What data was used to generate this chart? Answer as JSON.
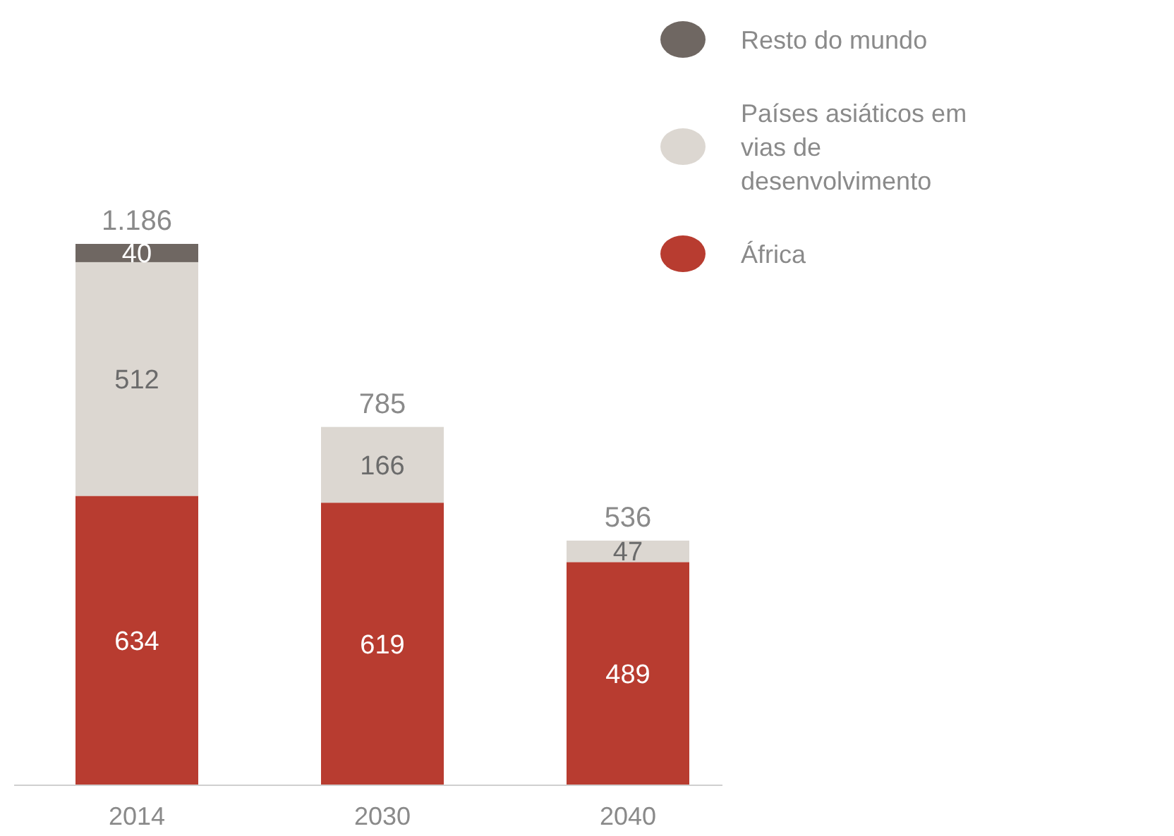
{
  "chart_data": {
    "type": "bar",
    "stacked": true,
    "categories": [
      "2014",
      "2030",
      "2040"
    ],
    "series": [
      {
        "name": "África",
        "color": "#b83c30",
        "values": [
          634,
          619,
          489
        ]
      },
      {
        "name": "Países asiáticos em vias de desenvolvimento",
        "color": "#dcd7d1",
        "values": [
          512,
          166,
          47
        ]
      },
      {
        "name": "Resto do mundo",
        "color": "#6f6762",
        "values": [
          40,
          null,
          null
        ]
      }
    ],
    "totals": [
      "1.186",
      "785",
      "536"
    ],
    "data_labels": true,
    "legend": "top right"
  }
}
